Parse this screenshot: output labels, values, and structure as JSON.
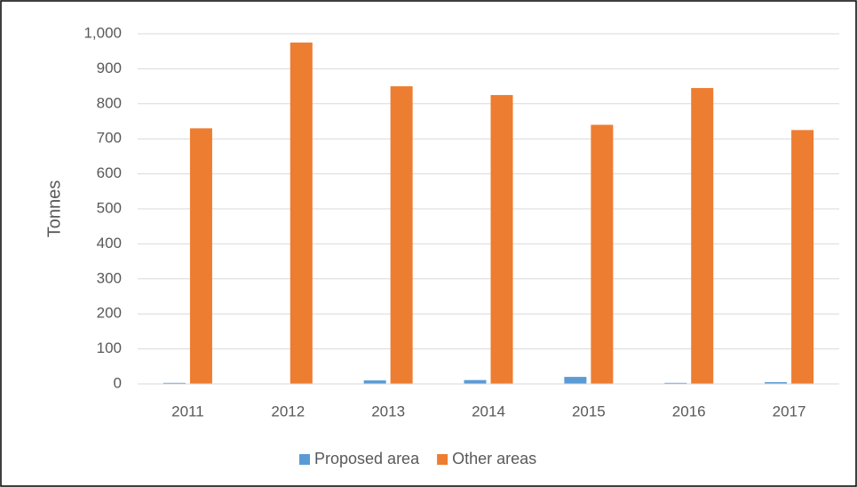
{
  "chart_data": {
    "type": "bar",
    "y_label": "Tonnes",
    "categories": [
      "2011",
      "2012",
      "2013",
      "2014",
      "2015",
      "2016",
      "2017"
    ],
    "series": [
      {
        "name": "Proposed area",
        "color": "#5b9bd5",
        "values": [
          3,
          0,
          10,
          11,
          20,
          3,
          5
        ]
      },
      {
        "name": "Other areas",
        "color": "#ed7d31",
        "values": [
          730,
          975,
          850,
          825,
          740,
          845,
          725
        ]
      }
    ],
    "ylim": [
      0,
      1000
    ],
    "yticks": [
      0,
      100,
      200,
      300,
      400,
      500,
      600,
      700,
      800,
      900,
      {
        "value": 1000,
        "label": "1,000"
      }
    ],
    "grid": true,
    "legend": "bottom"
  }
}
